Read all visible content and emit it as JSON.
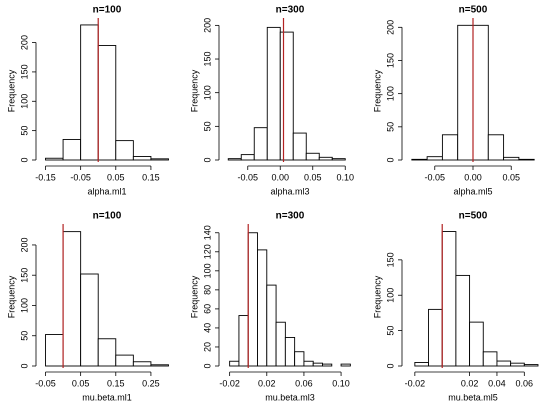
{
  "chart_data": [
    {
      "type": "histogram",
      "title": "n=100",
      "xlabel": "alpha.ml1",
      "ylabel": "Frequency",
      "bins": [
        -0.15,
        -0.1,
        -0.05,
        0,
        0.05,
        0.1,
        0.15,
        0.2
      ],
      "values": [
        3,
        35,
        230,
        195,
        33,
        6,
        2
      ],
      "xlim": [
        -0.16,
        0.21
      ],
      "ylim": [
        0,
        235
      ],
      "xticks": [
        -0.15,
        -0.05,
        0.05,
        0.15
      ],
      "yticks": [
        0,
        50,
        100,
        150,
        200
      ],
      "vline": 0,
      "vline_color": "#b22222",
      "color": "#ffffff"
    },
    {
      "type": "histogram",
      "title": "n=300",
      "xlabel": "alpha.ml3",
      "ylabel": "Frequency",
      "bins": [
        -0.08,
        -0.06,
        -0.04,
        -0.02,
        0,
        0.02,
        0.04,
        0.06,
        0.08,
        0.1
      ],
      "values": [
        2,
        8,
        48,
        197,
        190,
        40,
        10,
        4,
        2
      ],
      "xlim": [
        -0.085,
        0.115
      ],
      "ylim": [
        0,
        205
      ],
      "xticks": [
        -0.05,
        {
          "value": 0,
          "label": "0.00"
        },
        0.05,
        {
          "value": 0.1,
          "label": "0.10"
        }
      ],
      "yticks": [
        0,
        50,
        100,
        150,
        200
      ],
      "vline": 0.005,
      "vline_color": "#b22222",
      "color": "#ffffff"
    },
    {
      "type": "histogram",
      "title": "n=500",
      "xlabel": "alpha.ml5",
      "ylabel": "Frequency",
      "bins": [
        -0.08,
        -0.06,
        -0.04,
        -0.02,
        0,
        0.02,
        0.04,
        0.06,
        0.08
      ],
      "values": [
        1,
        5,
        38,
        203,
        203,
        38,
        4,
        1
      ],
      "xlim": [
        -0.085,
        0.085
      ],
      "ylim": [
        0,
        208
      ],
      "xticks": [
        -0.05,
        {
          "value": 0,
          "label": "0.00"
        },
        0.05
      ],
      "yticks": [
        0,
        50,
        100,
        150,
        200
      ],
      "vline": 0,
      "vline_color": "#b22222",
      "color": "#ffffff"
    },
    {
      "type": "histogram",
      "title": "n=100",
      "xlabel": "mu.beta.ml1",
      "ylabel": "Frequency",
      "bins": [
        -0.05,
        0,
        0.05,
        0.1,
        0.15,
        0.2,
        0.25,
        0.3
      ],
      "values": [
        52,
        222,
        152,
        45,
        18,
        7,
        2
      ],
      "xlim": [
        -0.06,
        0.31
      ],
      "ylim": [
        0,
        228
      ],
      "xticks": [
        -0.05,
        0.05,
        0.15,
        0.25
      ],
      "yticks": [
        0,
        50,
        100,
        150,
        200
      ],
      "vline": 0,
      "vline_color": "#b22222",
      "color": "#ffffff"
    },
    {
      "type": "histogram",
      "title": "n=300",
      "xlabel": "mu.beta.ml3",
      "ylabel": "Frequency",
      "bins": [
        -0.02,
        -0.01,
        0,
        0.01,
        0.02,
        0.03,
        0.04,
        0.05,
        0.06,
        0.07,
        0.08,
        0.09,
        0.1,
        0.11
      ],
      "values": [
        5,
        53,
        140,
        122,
        85,
        46,
        30,
        15,
        5,
        3,
        2,
        0,
        2
      ],
      "xlim": [
        -0.025,
        0.115
      ],
      "ylim": [
        0,
        145
      ],
      "xticks": [
        -0.02,
        0.02,
        0.06,
        {
          "value": 0.1,
          "label": "0.10"
        }
      ],
      "yticks": [
        0,
        20,
        40,
        60,
        80,
        100,
        120,
        140
      ],
      "vline": 0,
      "vline_color": "#b22222",
      "color": "#ffffff"
    },
    {
      "type": "histogram",
      "title": "n=500",
      "xlabel": "mu.beta.ml5",
      "ylabel": "Frequency",
      "bins": [
        -0.02,
        -0.01,
        0,
        0.01,
        0.02,
        0.03,
        0.04,
        0.05,
        0.06,
        0.07
      ],
      "values": [
        5,
        80,
        190,
        128,
        62,
        20,
        7,
        4,
        2
      ],
      "xlim": [
        -0.025,
        0.07
      ],
      "ylim": [
        0,
        195
      ],
      "xticks": [
        -0.02,
        0.02,
        0.04,
        0.06
      ],
      "yticks": [
        0,
        50,
        100,
        150
      ],
      "vline": 0,
      "vline_color": "#b22222",
      "color": "#ffffff"
    }
  ]
}
